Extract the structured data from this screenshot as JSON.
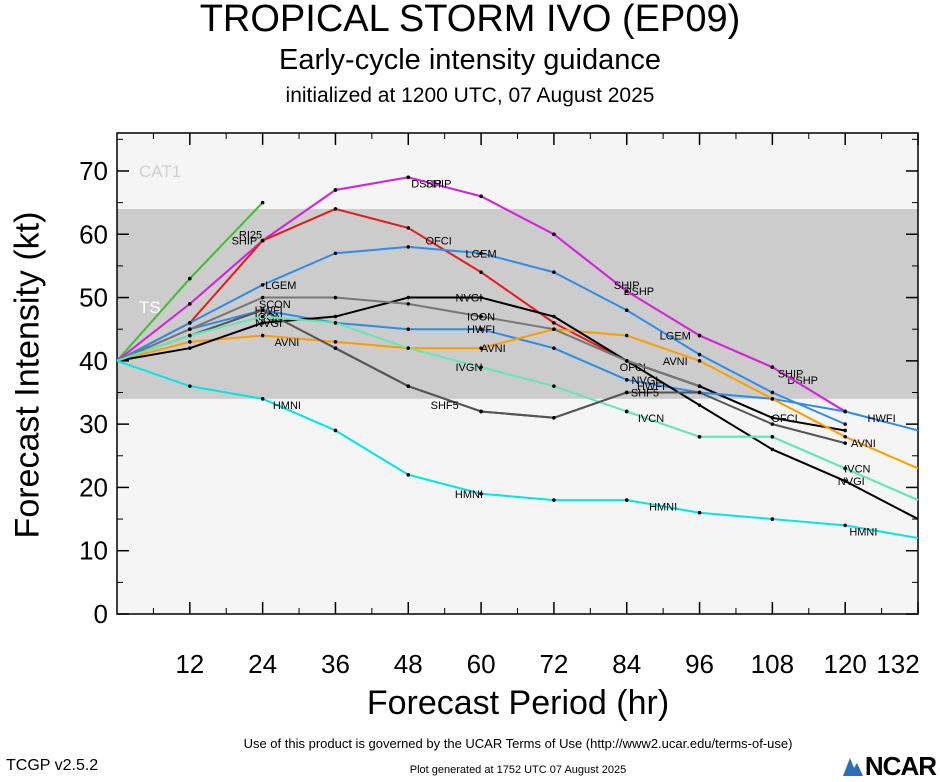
{
  "title": "TROPICAL STORM IVO (EP09)",
  "subtitle": "Early-cycle intensity guidance",
  "initialized": "initialized at 1200 UTC, 07 August 2025",
  "footer": {
    "terms": "Use of this product is governed by the UCAR Terms of Use (http://www2.ucar.edu/terms-of-use)",
    "version": "TCGP v2.5.2",
    "generated": "Plot generated at 1752 UTC   07 August 2025",
    "logo": "NCAR"
  },
  "chart_data": {
    "type": "line",
    "xlabel": "Forecast Period (hr)",
    "ylabel": "Forecast Intensity (kt)",
    "xlim": [
      0,
      132
    ],
    "ylim": [
      0,
      76
    ],
    "xticks": [
      12,
      24,
      36,
      48,
      60,
      72,
      84,
      96,
      108,
      120,
      132
    ],
    "yticks": [
      0,
      10,
      20,
      30,
      40,
      50,
      60,
      70
    ],
    "grid": false,
    "bands": [
      {
        "label": "TS",
        "from": 34,
        "to": 64,
        "color": "#cccccc"
      },
      {
        "label": "CAT1",
        "from": 64,
        "to": 76,
        "color": "#f5f5f5"
      }
    ],
    "background_color": "#f5f5f5",
    "series": [
      {
        "name": "RI25",
        "color": "#3dbf2e",
        "x": [
          0,
          12,
          24
        ],
        "y": [
          40,
          53,
          65
        ],
        "labels": [
          {
            "x": 22,
            "y": 60
          }
        ]
      },
      {
        "name": "DSHP",
        "color": "#33cc33",
        "x": [
          0,
          12,
          24,
          36,
          48,
          60,
          72,
          84,
          96,
          108,
          120
        ],
        "y": [
          40,
          49,
          59,
          67,
          69,
          66,
          60,
          51,
          44,
          39,
          32
        ],
        "labels": [
          {
            "x": 51,
            "y": 68
          },
          {
            "x": 86,
            "y": 51
          },
          {
            "x": 113,
            "y": 37
          }
        ]
      },
      {
        "name": "SHIP",
        "color": "#e01be6",
        "x": [
          0,
          12,
          24,
          36,
          48,
          60,
          72,
          84,
          96,
          108,
          120
        ],
        "y": [
          40,
          49,
          59,
          67,
          69,
          66,
          60,
          51,
          44,
          39,
          32
        ],
        "labels": [
          {
            "x": 21,
            "y": 59
          },
          {
            "x": 53,
            "y": 68
          },
          {
            "x": 84,
            "y": 52
          },
          {
            "x": 111,
            "y": 38
          }
        ]
      },
      {
        "name": "OFCI",
        "color": "#e61a1a",
        "x": [
          0,
          12,
          24,
          36,
          48,
          60,
          72,
          84,
          96
        ],
        "y": [
          40,
          46,
          59,
          64,
          61,
          54,
          46,
          40,
          36
        ],
        "labels": [
          {
            "x": 53,
            "y": 59
          },
          {
            "x": 85,
            "y": 39
          }
        ]
      },
      {
        "name": "OFCI",
        "color": "#000000",
        "x": [
          84,
          96,
          108,
          120
        ],
        "y": [
          40,
          36,
          31,
          29
        ],
        "labels": [
          {
            "x": 110,
            "y": 31
          }
        ]
      },
      {
        "name": "LGEM",
        "color": "#2e8ce6",
        "x": [
          0,
          12,
          24,
          36,
          48,
          60,
          72,
          84,
          96,
          108,
          120
        ],
        "y": [
          40,
          46,
          52,
          57,
          58,
          57,
          54,
          48,
          41,
          35,
          30
        ],
        "labels": [
          {
            "x": 27,
            "y": 52
          },
          {
            "x": 60,
            "y": 57
          },
          {
            "x": 92,
            "y": 44
          }
        ]
      },
      {
        "name": "HWFI",
        "color": "#2e8ce6",
        "x": [
          0,
          12,
          24,
          36,
          48,
          60,
          72,
          84,
          96,
          108,
          120,
          132
        ],
        "y": [
          40,
          45,
          48,
          46,
          45,
          45,
          42,
          37,
          35,
          34,
          32,
          29
        ],
        "labels": [
          {
            "x": 25,
            "y": 48
          },
          {
            "x": 60,
            "y": 45
          },
          {
            "x": 88,
            "y": 36
          },
          {
            "x": 126,
            "y": 31
          }
        ]
      },
      {
        "name": "AVNI",
        "color": "#ff9c00",
        "x": [
          0,
          12,
          24,
          36,
          48,
          60,
          72,
          84,
          96,
          108,
          120,
          132
        ],
        "y": [
          40,
          43,
          44,
          43,
          42,
          42,
          45,
          44,
          40,
          34,
          28,
          23
        ],
        "labels": [
          {
            "x": 28,
            "y": 43
          },
          {
            "x": 62,
            "y": 42
          },
          {
            "x": 92,
            "y": 40
          },
          {
            "x": 123,
            "y": 27
          }
        ]
      },
      {
        "name": "NVGI",
        "color": "#000000",
        "x": [
          0,
          12,
          24,
          36,
          48,
          60,
          72,
          84,
          96,
          108,
          120,
          132
        ],
        "y": [
          40,
          42,
          46,
          47,
          50,
          50,
          47,
          40,
          33,
          26,
          21,
          15
        ],
        "labels": [
          {
            "x": 25,
            "y": 46
          },
          {
            "x": 58,
            "y": 50
          },
          {
            "x": 87,
            "y": 37
          },
          {
            "x": 121,
            "y": 21
          }
        ]
      },
      {
        "name": "SCON",
        "color": "#777777",
        "x": [
          0,
          12,
          24,
          36,
          48,
          60,
          72,
          84,
          96
        ],
        "y": [
          40,
          45,
          50,
          50,
          49,
          47,
          45,
          40,
          36
        ],
        "labels": [
          {
            "x": 26,
            "y": 49
          }
        ]
      },
      {
        "name": "IOON",
        "color": "#555555",
        "x": [
          0,
          12,
          24,
          36,
          48,
          60,
          72,
          84,
          96,
          108,
          120
        ],
        "y": [
          40,
          44,
          48,
          42,
          36,
          32,
          31,
          35,
          35,
          30,
          27
        ],
        "labels": [
          {
            "x": 25,
            "y": 47
          },
          {
            "x": 60,
            "y": 47
          }
        ]
      },
      {
        "name": "IVGN",
        "color": "#66e6b3",
        "x": [
          0,
          12,
          24,
          36,
          48,
          60,
          72,
          84,
          96,
          108,
          120,
          132
        ],
        "y": [
          40,
          44,
          47,
          46,
          42,
          39,
          36,
          32,
          28,
          28,
          23,
          18
        ],
        "labels": [
          {
            "x": 58,
            "y": 39
          }
        ]
      },
      {
        "name": "IVCN",
        "color": "#66e6b3",
        "x": [
          84,
          96,
          108,
          120,
          132
        ],
        "y": [
          32,
          28,
          28,
          23,
          18
        ],
        "labels": [
          {
            "x": 88,
            "y": 31
          },
          {
            "x": 122,
            "y": 23
          }
        ]
      },
      {
        "name": "SHF5",
        "color": "#555555",
        "x": [
          36,
          48,
          60,
          72,
          84
        ],
        "y": [
          42,
          36,
          32,
          31,
          35
        ],
        "labels": [
          {
            "x": 54,
            "y": 33
          },
          {
            "x": 87,
            "y": 35
          }
        ]
      },
      {
        "name": "HMNI",
        "color": "#00e6e6",
        "x": [
          0,
          12,
          24,
          36,
          48,
          60,
          72,
          84,
          96,
          108,
          120,
          132
        ],
        "y": [
          40,
          36,
          34,
          29,
          22,
          19,
          18,
          18,
          16,
          15,
          14,
          12
        ],
        "labels": [
          {
            "x": 28,
            "y": 33
          },
          {
            "x": 58,
            "y": 19
          },
          {
            "x": 90,
            "y": 17
          },
          {
            "x": 123,
            "y": 13
          }
        ]
      }
    ]
  }
}
